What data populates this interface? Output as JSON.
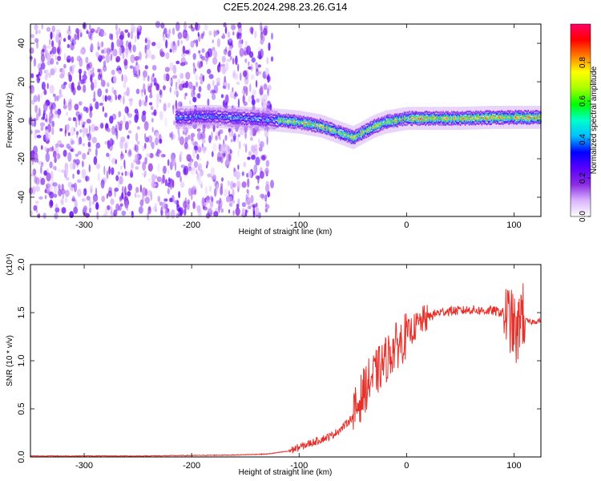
{
  "title": "C2E5.2024.298.23.26.G14",
  "chart_data": [
    {
      "type": "heatmap",
      "xlabel": "Height of straight line (km)",
      "ylabel": "Frequency (Hz)",
      "xlim": [
        -350,
        125
      ],
      "ylim": [
        -50,
        50
      ],
      "xticks": [
        -300,
        -200,
        -100,
        0,
        100
      ],
      "yticks": [
        -40,
        -20,
        0,
        20,
        40
      ],
      "colorbar": {
        "label": "Normalized spectral amplitude",
        "ticks": [
          "0.0",
          "0.2",
          "0.4",
          "0.6",
          "0.8"
        ],
        "range": [
          0,
          1
        ],
        "colors": [
          "#ffffff",
          "#d9b3ff",
          "#8a2be2",
          "#5a00ff",
          "#0000ff",
          "#00bfff",
          "#00ffcc",
          "#00ff00",
          "#aaff00",
          "#ffff00",
          "#ff8000",
          "#ff0000",
          "#ff0066"
        ]
      },
      "centerline": {
        "x": [
          -200,
          -180,
          -150,
          -120,
          -100,
          -80,
          -60,
          -50,
          -40,
          -30,
          -20,
          -10,
          0,
          20,
          50,
          80,
          100,
          125
        ],
        "y": [
          2,
          2,
          1,
          0,
          -1,
          -3,
          -7,
          -9,
          -6,
          -3,
          -1,
          0,
          1,
          1,
          1,
          1.5,
          1.5,
          1.5
        ]
      },
      "noise_region_x": [
        -350,
        -125
      ]
    },
    {
      "type": "line",
      "xlabel": "Height of straight line (km)",
      "ylabel": "SNR (10 * v/v)",
      "yscale_label": "(x10⁴)",
      "xlim": [
        -350,
        125
      ],
      "ylim": [
        0,
        2.0
      ],
      "xticks": [
        -300,
        -200,
        -100,
        0,
        100
      ],
      "yticks": [
        "0.0",
        "0.5",
        "1.0",
        "1.5",
        "2.0"
      ],
      "series": [
        {
          "color": "#e8302a",
          "x": [
            -350,
            -300,
            -250,
            -200,
            -160,
            -130,
            -110,
            -100,
            -90,
            -80,
            -70,
            -60,
            -50,
            -45,
            -40,
            -35,
            -30,
            -25,
            -20,
            -15,
            -10,
            -5,
            0,
            5,
            10,
            15,
            20,
            25,
            30,
            40,
            50,
            60,
            70,
            80,
            90,
            95,
            100,
            103,
            106,
            110,
            115,
            120,
            125
          ],
          "y": [
            0.01,
            0.01,
            0.01,
            0.015,
            0.02,
            0.03,
            0.06,
            0.1,
            0.14,
            0.18,
            0.22,
            0.3,
            0.42,
            0.55,
            0.68,
            0.78,
            0.85,
            0.92,
            1.0,
            1.08,
            1.15,
            1.2,
            1.27,
            1.32,
            1.37,
            1.42,
            1.45,
            1.48,
            1.5,
            1.52,
            1.52,
            1.53,
            1.52,
            1.52,
            1.5,
            1.45,
            1.35,
            1.2,
            1.55,
            1.42,
            1.4,
            1.41,
            1.42
          ]
        }
      ]
    }
  ]
}
